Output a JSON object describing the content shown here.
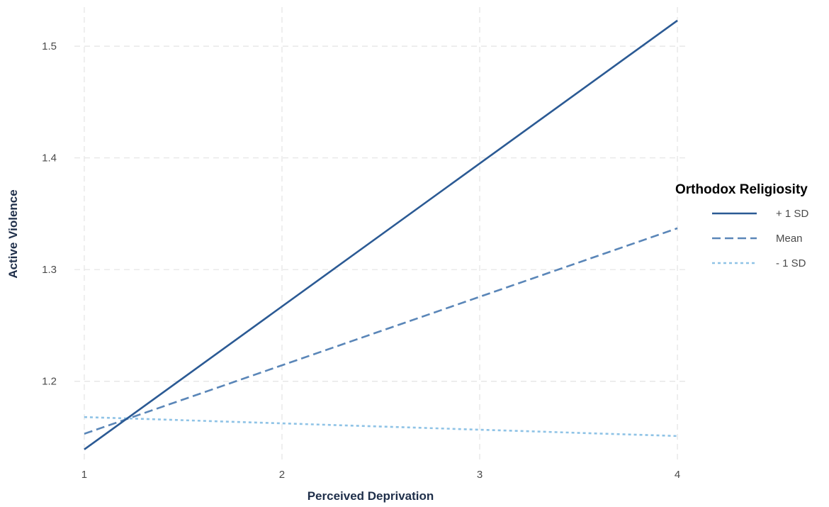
{
  "chart_data": {
    "type": "line",
    "title": "",
    "xlabel": "Perceived Deprivation",
    "ylabel": "Active Violence",
    "xlim": [
      0.95,
      4.05
    ],
    "ylim": [
      1.13,
      1.535
    ],
    "x_ticks": [
      1,
      2,
      3,
      4
    ],
    "y_ticks": [
      1.2,
      1.3,
      1.4,
      1.5
    ],
    "x_tick_labels": [
      "1",
      "2",
      "3",
      "4"
    ],
    "y_tick_labels": [
      "1.2",
      "1.3",
      "1.4",
      "1.5"
    ],
    "grid": true,
    "legend": {
      "title": "Orthodox Religiosity",
      "position": "right"
    },
    "x": [
      1,
      4
    ],
    "series": [
      {
        "name": "+ 1 SD",
        "values": [
          1.139,
          1.523
        ],
        "color": "#2b5a94",
        "line_style": "solid"
      },
      {
        "name": "Mean",
        "values": [
          1.153,
          1.337
        ],
        "color": "#5a86b8",
        "line_style": "dashed"
      },
      {
        "name": "- 1 SD",
        "values": [
          1.168,
          1.151
        ],
        "color": "#8fc3e6",
        "line_style": "dotted"
      }
    ]
  }
}
